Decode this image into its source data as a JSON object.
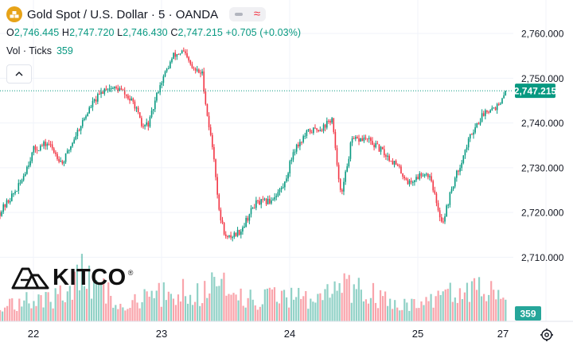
{
  "header": {
    "symbol_icon": "gold-bars-icon",
    "title": "Gold Spot / U.S. Dollar · 5 · OANDA",
    "ohlc": [
      {
        "label": "O",
        "value": "2,746.445"
      },
      {
        "label": "H",
        "value": "2,747.720"
      },
      {
        "label": "L",
        "value": "2,746.430"
      },
      {
        "label": "C",
        "value": "2,747.215"
      }
    ],
    "change": "+0.705 (+0.03%)"
  },
  "volume": {
    "label": "Vol · Ticks",
    "value": "359"
  },
  "watermark": {
    "text": "KITCO",
    "reg": "®"
  },
  "price_tag": "2,747.215",
  "volume_tag": "359",
  "colors": {
    "up": "#089981",
    "down": "#f23645",
    "grid": "#f0f3fa",
    "axis_text": "#131722"
  },
  "chart_data": {
    "type": "candlestick",
    "interval": "5",
    "x_tick_labels": [
      "22",
      "23",
      "24",
      "25",
      "27"
    ],
    "y_tick_labels": [
      "2,760.000",
      "2,750.000",
      "2,740.000",
      "2,730.000",
      "2,720.000",
      "2,710.000"
    ],
    "ylim": [
      2703.3,
      2762.7
    ],
    "last_price": 2747.215,
    "volume_last": 359,
    "price_path": [
      [
        0,
        2720
      ],
      [
        4,
        2726
      ],
      [
        7,
        2734
      ],
      [
        10,
        2735.5
      ],
      [
        13,
        2731
      ],
      [
        16,
        2738
      ],
      [
        19,
        2744
      ],
      [
        22,
        2748
      ],
      [
        25,
        2747.5
      ],
      [
        28,
        2744
      ],
      [
        29.5,
        2739
      ],
      [
        31,
        2740
      ],
      [
        33,
        2748
      ],
      [
        36,
        2755
      ],
      [
        38,
        2756
      ],
      [
        40,
        2752
      ],
      [
        42,
        2751
      ],
      [
        43,
        2742
      ],
      [
        44.5,
        2732
      ],
      [
        45.5,
        2720
      ],
      [
        47,
        2714
      ],
      [
        50,
        2716
      ],
      [
        53,
        2722
      ],
      [
        56,
        2722.5
      ],
      [
        59,
        2726
      ],
      [
        61,
        2734
      ],
      [
        64,
        2738
      ],
      [
        67,
        2739
      ],
      [
        69,
        2741
      ],
      [
        70,
        2730
      ],
      [
        71,
        2724
      ],
      [
        73,
        2736
      ],
      [
        76,
        2736.5
      ],
      [
        79,
        2734
      ],
      [
        82,
        2731
      ],
      [
        85,
        2726.5
      ],
      [
        88,
        2729
      ],
      [
        89.5,
        2728
      ],
      [
        91,
        2720
      ],
      [
        92,
        2718
      ],
      [
        94,
        2726
      ],
      [
        96,
        2732
      ],
      [
        98,
        2738
      ],
      [
        101,
        2743
      ],
      [
        104,
        2744
      ],
      [
        105,
        2747.215
      ]
    ],
    "volume_profile": [
      [
        0,
        27
      ],
      [
        6,
        29
      ],
      [
        11,
        35
      ],
      [
        15,
        60
      ],
      [
        18,
        70
      ],
      [
        22,
        40
      ],
      [
        26,
        25
      ],
      [
        30,
        33
      ],
      [
        34,
        40
      ],
      [
        38,
        45
      ],
      [
        42,
        35
      ],
      [
        45,
        75
      ],
      [
        47,
        60
      ],
      [
        50,
        35
      ],
      [
        54,
        30
      ],
      [
        58,
        35
      ],
      [
        62,
        34
      ],
      [
        66,
        34
      ],
      [
        70,
        55
      ],
      [
        74,
        45
      ],
      [
        78,
        38
      ],
      [
        82,
        28
      ],
      [
        86,
        25
      ],
      [
        90,
        30
      ],
      [
        94,
        40
      ],
      [
        98,
        55
      ],
      [
        102,
        40
      ],
      [
        105,
        30
      ]
    ]
  }
}
